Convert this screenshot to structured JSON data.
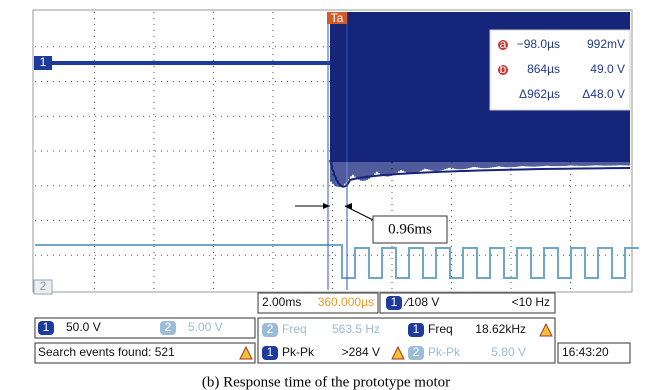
{
  "markers": {
    "trigger": "Ta",
    "ch1": "1",
    "ch2": "2"
  },
  "cursor_readout": {
    "a_label": "a",
    "b_label": "b",
    "rows": [
      [
        "−98.0µs",
        "992mV"
      ],
      [
        "864µs",
        "49.0 V"
      ],
      [
        "Δ962µs",
        "Δ48.0 V"
      ]
    ]
  },
  "annotation": "0.96ms",
  "status": {
    "timebase": "2.00ms",
    "delay": "360.000µs",
    "trigger_ch": "1",
    "trigger_level": "∕108 V",
    "trigger_freq": "<10 Hz",
    "ch1_badge": "1",
    "ch1_scale": "50.0 V",
    "ch2_badge": "2",
    "ch2_scale": "5.00 V",
    "meas": [
      {
        "badge": "2",
        "name": "Freq",
        "value": "563.5 Hz"
      },
      {
        "badge": "1",
        "name": "Freq",
        "value": "18.62kHz"
      },
      {
        "badge": "1",
        "name": "Pk-Pk",
        "value": ">284 V"
      },
      {
        "badge": "2",
        "name": "Pk-Pk",
        "value": "5.80 V"
      }
    ],
    "search": "Search events found: 521",
    "time": "16:43:20"
  },
  "caption": "(b) Response time of the prototype motor"
}
